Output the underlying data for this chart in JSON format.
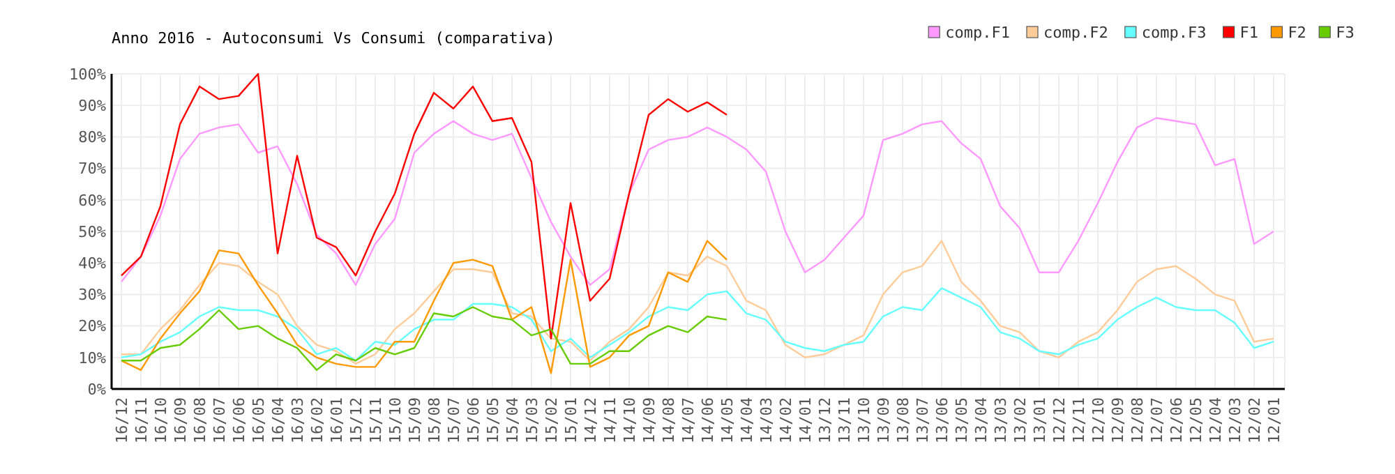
{
  "chart_data": {
    "type": "line",
    "title": "Anno 2016 - Autoconsumi Vs Consumi (comparativa)",
    "categories": [
      "16/12",
      "16/11",
      "16/10",
      "16/09",
      "16/08",
      "16/07",
      "16/06",
      "16/05",
      "16/04",
      "16/03",
      "16/02",
      "16/01",
      "15/12",
      "15/11",
      "15/10",
      "15/09",
      "15/08",
      "15/07",
      "15/06",
      "15/05",
      "15/04",
      "15/03",
      "15/02",
      "15/01",
      "14/12",
      "14/11",
      "14/10",
      "14/09",
      "14/08",
      "14/07",
      "14/06",
      "14/05",
      "14/04",
      "14/03",
      "14/02",
      "14/01",
      "13/12",
      "13/11",
      "13/10",
      "13/09",
      "13/08",
      "13/07",
      "13/06",
      "13/05",
      "13/04",
      "13/03",
      "13/02",
      "13/01",
      "12/12",
      "12/11",
      "12/10",
      "12/09",
      "12/08",
      "12/07",
      "12/06",
      "12/05",
      "12/04",
      "12/03",
      "12/02",
      "12/01"
    ],
    "series": [
      {
        "name": "comp.F1",
        "color": "#ff99ff",
        "values": [
          34,
          42,
          55,
          73,
          81,
          83,
          84,
          75,
          77,
          65,
          49,
          43,
          33,
          46,
          54,
          75,
          81,
          85,
          81,
          79,
          81,
          67,
          53,
          42,
          33,
          38,
          62,
          76,
          79,
          80,
          83,
          80,
          76,
          69,
          50,
          37,
          41,
          48,
          55,
          79,
          81,
          84,
          85,
          78,
          73,
          58,
          51,
          37,
          37,
          47,
          59,
          72,
          83,
          86,
          85,
          84,
          71,
          73,
          46,
          50
        ]
      },
      {
        "name": "comp.F2",
        "color": "#ffcc99",
        "values": [
          11,
          11,
          19,
          25,
          33,
          40,
          39,
          34,
          30,
          20,
          14,
          12,
          8,
          11,
          19,
          24,
          31,
          38,
          38,
          37,
          24,
          23,
          16,
          15,
          9,
          15,
          19,
          26,
          37,
          36,
          42,
          39,
          28,
          25,
          14,
          10,
          11,
          14,
          17,
          30,
          37,
          39,
          47,
          34,
          28,
          20,
          18,
          12,
          10,
          15,
          18,
          25,
          34,
          38,
          39,
          35,
          30,
          28,
          15,
          16
        ]
      },
      {
        "name": "comp.F3",
        "color": "#66ffff",
        "values": [
          10,
          11,
          15,
          18,
          23,
          26,
          25,
          25,
          23,
          19,
          11,
          13,
          9,
          15,
          14,
          19,
          22,
          22,
          27,
          27,
          26,
          22,
          12,
          16,
          10,
          14,
          18,
          23,
          26,
          25,
          30,
          31,
          24,
          22,
          15,
          13,
          12,
          14,
          15,
          23,
          26,
          25,
          32,
          29,
          26,
          18,
          16,
          12,
          11,
          14,
          16,
          22,
          26,
          29,
          26,
          25,
          25,
          21,
          13,
          15
        ]
      },
      {
        "name": "F1",
        "color": "#ff0000",
        "values": [
          36,
          42,
          58,
          84,
          96,
          92,
          93,
          100,
          43,
          74,
          48,
          45,
          36,
          50,
          62,
          81,
          94,
          89,
          96,
          85,
          86,
          72,
          16,
          59,
          28,
          35,
          62,
          87,
          92,
          88,
          91,
          87,
          null,
          null,
          null,
          null,
          null,
          null,
          null,
          null,
          null,
          null,
          null,
          null,
          null,
          null,
          null,
          null,
          null,
          null,
          null,
          null,
          null,
          null,
          null,
          null,
          null,
          null,
          null,
          null
        ]
      },
      {
        "name": "F2",
        "color": "#ff9900",
        "values": [
          9,
          6,
          16,
          24,
          31,
          44,
          43,
          33,
          24,
          14,
          10,
          8,
          7,
          7,
          15,
          15,
          28,
          40,
          41,
          39,
          22,
          26,
          5,
          41,
          7,
          10,
          17,
          20,
          37,
          34,
          47,
          41,
          null,
          null,
          null,
          null,
          null,
          null,
          null,
          null,
          null,
          null,
          null,
          null,
          null,
          null,
          null,
          null,
          null,
          null,
          null,
          null,
          null,
          null,
          null,
          null,
          null,
          null,
          null,
          null
        ]
      },
      {
        "name": "F3",
        "color": "#66cc00",
        "values": [
          9,
          9,
          13,
          14,
          19,
          25,
          19,
          20,
          16,
          13,
          6,
          11,
          9,
          13,
          11,
          13,
          24,
          23,
          26,
          23,
          22,
          17,
          19,
          8,
          8,
          12,
          12,
          17,
          20,
          18,
          23,
          22,
          null,
          null,
          null,
          null,
          null,
          null,
          null,
          null,
          null,
          null,
          null,
          null,
          null,
          null,
          null,
          null,
          null,
          null,
          null,
          null,
          null,
          null,
          null,
          null,
          null,
          null,
          null,
          null
        ]
      }
    ],
    "ylim": [
      0,
      100
    ],
    "yticks": [
      {
        "value": 0,
        "label": "0%"
      },
      {
        "value": 10,
        "label": "10%"
      },
      {
        "value": 20,
        "label": "20%"
      },
      {
        "value": 30,
        "label": "30%"
      },
      {
        "value": 40,
        "label": "40%"
      },
      {
        "value": 50,
        "label": "50%"
      },
      {
        "value": 60,
        "label": "60%"
      },
      {
        "value": 70,
        "label": "70%"
      },
      {
        "value": 80,
        "label": "80%"
      },
      {
        "value": 90,
        "label": "90%"
      },
      {
        "value": 100,
        "label": "100%"
      }
    ],
    "grid": true,
    "legend": "top right",
    "marker": "none",
    "line_style": "solid"
  }
}
